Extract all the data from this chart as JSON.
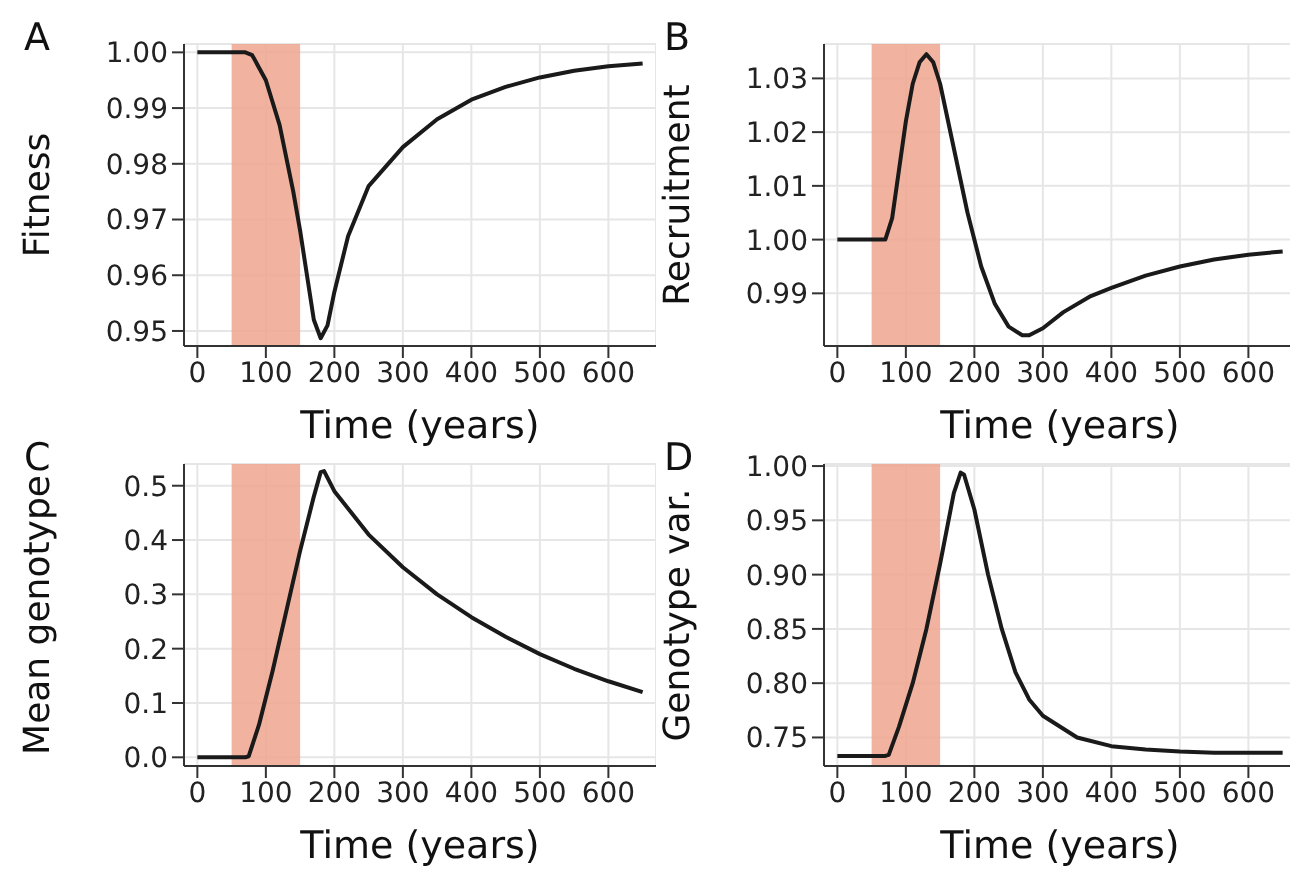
{
  "chart_data": [
    {
      "type": "line",
      "title": "A",
      "xlabel": "Time (years)",
      "ylabel": "Fitness",
      "xlim": [
        -19.5,
        669.5
      ],
      "xticks": [
        0,
        100,
        200,
        300,
        400,
        500,
        600
      ],
      "ylim": [
        0.9473,
        1.0015
      ],
      "yticks": [
        0.95,
        0.96,
        0.97,
        0.98,
        0.99,
        {
          "value": 1.0,
          "label": "1.00"
        }
      ],
      "grid": true,
      "legend": false,
      "marker": "none",
      "line_style": "solid",
      "bands": [
        {
          "axis": "x",
          "from": 50,
          "to": 150,
          "color": "#efa68e"
        }
      ],
      "series": [
        {
          "color": "#1a1a1a",
          "x": [
            0,
            70,
            80,
            100,
            120,
            140,
            150,
            160,
            170,
            180,
            190,
            200,
            220,
            250,
            300,
            350,
            400,
            450,
            500,
            550,
            600,
            650
          ],
          "values": [
            1,
            1,
            0.9995,
            0.995,
            0.987,
            0.975,
            0.968,
            0.96,
            0.952,
            0.9487,
            0.951,
            0.957,
            0.967,
            0.976,
            0.983,
            0.988,
            0.9915,
            0.9938,
            0.9955,
            0.9967,
            0.9975,
            0.998
          ]
        }
      ]
    },
    {
      "type": "line",
      "title": "B",
      "xlabel": "Time (years)",
      "ylabel": "Recruitment",
      "xlim": [
        -19.5,
        669.5
      ],
      "xticks": [
        0,
        100,
        200,
        300,
        400,
        500,
        600
      ],
      "ylim": [
        0.9802,
        1.0364
      ],
      "yticks": [
        0.99,
        {
          "value": 1.0,
          "label": "1.00"
        },
        1.01,
        1.02,
        1.03
      ],
      "grid": true,
      "legend": false,
      "marker": "none",
      "line_style": "solid",
      "bands": [
        {
          "axis": "x",
          "from": 50,
          "to": 150,
          "color": "#efa68e"
        }
      ],
      "series": [
        {
          "color": "#1a1a1a",
          "x": [
            0,
            70,
            80,
            90,
            100,
            110,
            120,
            130,
            140,
            150,
            170,
            190,
            210,
            230,
            250,
            270,
            280,
            300,
            330,
            370,
            400,
            450,
            500,
            550,
            600,
            650
          ],
          "values": [
            1,
            1,
            1.004,
            1.013,
            1.022,
            1.029,
            1.033,
            1.0345,
            1.033,
            1.029,
            1.017,
            1.005,
            0.995,
            0.988,
            0.9838,
            0.9822,
            0.9822,
            0.9835,
            0.9865,
            0.9895,
            0.991,
            0.9933,
            0.995,
            0.9963,
            0.9972,
            0.9978
          ]
        }
      ]
    },
    {
      "type": "line",
      "title": "C",
      "xlabel": "Time (years)",
      "ylabel": "Mean genotype",
      "xlim": [
        -19.5,
        669.5
      ],
      "xticks": [
        0,
        100,
        200,
        300,
        400,
        500,
        600
      ],
      "ylim": [
        -0.016,
        0.54
      ],
      "yticks": [
        {
          "value": 0,
          "label": "0.0"
        },
        0.1,
        0.2,
        0.3,
        0.4,
        0.5
      ],
      "grid": true,
      "legend": false,
      "marker": "none",
      "line_style": "solid",
      "bands": [
        {
          "axis": "x",
          "from": 50,
          "to": 150,
          "color": "#efa68e"
        }
      ],
      "series": [
        {
          "color": "#1a1a1a",
          "x": [
            0,
            70,
            75,
            90,
            110,
            130,
            150,
            170,
            180,
            185,
            200,
            250,
            300,
            350,
            400,
            450,
            500,
            550,
            600,
            650
          ],
          "values": [
            0,
            0,
            0.002,
            0.06,
            0.16,
            0.27,
            0.38,
            0.48,
            0.525,
            0.527,
            0.49,
            0.41,
            0.35,
            0.3,
            0.258,
            0.222,
            0.19,
            0.163,
            0.14,
            0.12
          ]
        }
      ]
    },
    {
      "type": "line",
      "title": "D",
      "xlabel": "Time (years)",
      "ylabel": "Genotype var.",
      "xlim": [
        -19.5,
        669.5
      ],
      "xticks": [
        0,
        100,
        200,
        300,
        400,
        500,
        600
      ],
      "ylim": [
        0.7237,
        1.0019
      ],
      "yticks": [
        0.75,
        {
          "value": 0.8,
          "label": "0.80"
        },
        0.85,
        {
          "value": 0.9,
          "label": "0.90"
        },
        0.95,
        {
          "value": 1.0,
          "label": "1.00"
        }
      ],
      "grid": true,
      "legend": false,
      "marker": "none",
      "line_style": "solid",
      "bands": [
        {
          "axis": "x",
          "from": 50,
          "to": 150,
          "color": "#efa68e"
        }
      ],
      "series": [
        {
          "color": "#1a1a1a",
          "x": [
            0,
            70,
            75,
            90,
            110,
            130,
            150,
            170,
            180,
            185,
            200,
            220,
            240,
            260,
            280,
            300,
            350,
            400,
            450,
            500,
            550,
            600,
            650
          ],
          "values": [
            0.733,
            0.733,
            0.734,
            0.76,
            0.8,
            0.85,
            0.91,
            0.975,
            0.994,
            0.992,
            0.96,
            0.9,
            0.85,
            0.81,
            0.785,
            0.77,
            0.75,
            0.742,
            0.739,
            0.737,
            0.736,
            0.736,
            0.736
          ]
        }
      ]
    }
  ]
}
